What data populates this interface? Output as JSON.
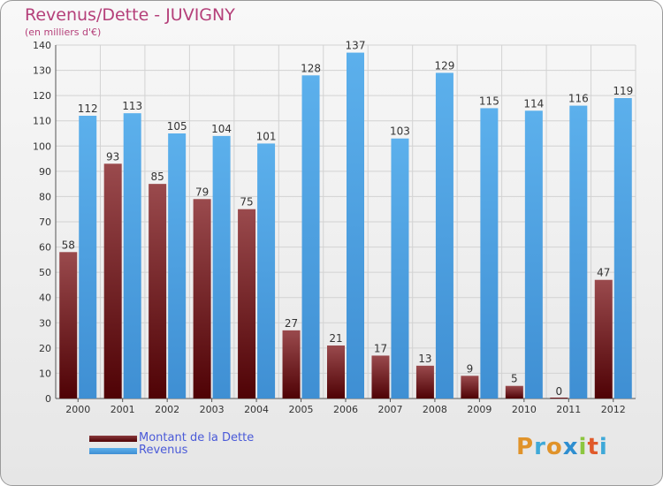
{
  "chart_data": {
    "type": "bar",
    "title": "Revenus/Dette - JUVIGNY",
    "subtitle": "(en milliers d'€)",
    "categories": [
      "2000",
      "2001",
      "2002",
      "2003",
      "2004",
      "2005",
      "2006",
      "2007",
      "2008",
      "2009",
      "2010",
      "2011",
      "2012"
    ],
    "series": [
      {
        "name": "Montant de la Dette",
        "color": "#6b0f14",
        "values": [
          58,
          93,
          85,
          79,
          75,
          27,
          21,
          17,
          13,
          9,
          5,
          0,
          47
        ]
      },
      {
        "name": "Revenus",
        "color": "#4fa3e3",
        "values": [
          112,
          113,
          105,
          104,
          101,
          128,
          137,
          103,
          129,
          115,
          114,
          116,
          119
        ]
      }
    ],
    "ylim": [
      0,
      140
    ],
    "yticks": [
      0,
      10,
      20,
      30,
      40,
      50,
      60,
      70,
      80,
      90,
      100,
      110,
      120,
      130,
      140
    ],
    "grid": true,
    "legend_position": "bottom-left"
  },
  "brand": {
    "logo_text": "Proxiti"
  }
}
